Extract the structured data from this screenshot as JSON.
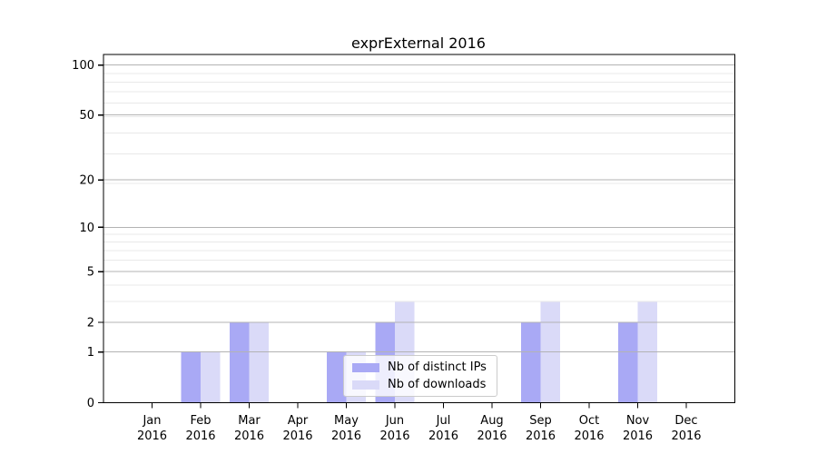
{
  "chart_data": {
    "type": "bar",
    "title": "exprExternal 2016",
    "categories": [
      "Jan 2016",
      "Feb 2016",
      "Mar 2016",
      "Apr 2016",
      "May 2016",
      "Jun 2016",
      "Jul 2016",
      "Aug 2016",
      "Sep 2016",
      "Oct 2016",
      "Nov 2016",
      "Dec 2016"
    ],
    "series": [
      {
        "name": "Nb of distinct IPs",
        "color": "#a9a9f5",
        "values": [
          0,
          1,
          2,
          0,
          1,
          2,
          0,
          0,
          2,
          0,
          2,
          0
        ]
      },
      {
        "name": "Nb of downloads",
        "color": "#dadaf8",
        "values": [
          0,
          1,
          2,
          0,
          1,
          3,
          0,
          0,
          3,
          0,
          3,
          0
        ]
      }
    ],
    "xlabel": "",
    "ylabel": "",
    "yscale": "log1p",
    "ylim": [
      0,
      100
    ],
    "yticks": {
      "values": [
        0,
        1,
        2,
        5,
        10,
        20,
        50,
        100
      ],
      "labels": [
        "0",
        "1",
        "2",
        "5",
        "10",
        "20",
        "50",
        "100"
      ]
    },
    "minor_yticks": [
      3,
      4,
      6,
      7,
      8,
      9,
      19,
      29,
      39,
      49,
      59,
      69,
      79,
      89
    ],
    "grid": {
      "enabled": true,
      "major_color": "#b3b3b3",
      "minor_color": "#e9e9e9"
    },
    "axis_color": "#000000",
    "background": "#ffffff",
    "legend": {
      "position": "inside lower-center-left",
      "entries": [
        "Nb of distinct IPs",
        "Nb of downloads"
      ]
    }
  }
}
